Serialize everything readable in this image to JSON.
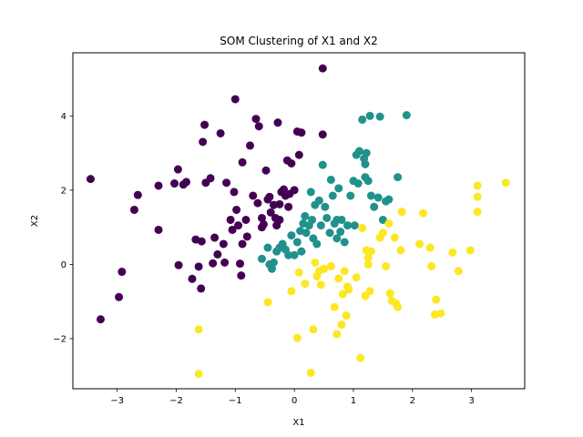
{
  "chart_data": {
    "type": "scatter",
    "title": "SOM Clustering of X1 and X2",
    "xlabel": "X1",
    "ylabel": "X2",
    "xlim": [
      -3.75,
      3.9
    ],
    "ylim": [
      -3.35,
      5.7
    ],
    "xticks": [
      -3,
      -2,
      -1,
      0,
      1,
      2,
      3
    ],
    "yticks": [
      -2,
      0,
      2,
      4
    ],
    "xtick_labels": [
      "−3",
      "−2",
      "−1",
      "0",
      "1",
      "2",
      "3"
    ],
    "ytick_labels": [
      "−2",
      "0",
      "2",
      "4"
    ],
    "grid": false,
    "legend": "none",
    "colors": {
      "cluster_0": "#440154",
      "cluster_1": "#21918c",
      "cluster_2": "#fde725"
    },
    "series": [
      {
        "color_key": "cluster_0",
        "points": [
          [
            -3.45,
            2.3
          ],
          [
            -3.28,
            -1.48
          ],
          [
            -2.97,
            -0.88
          ],
          [
            -2.92,
            -0.2
          ],
          [
            -2.71,
            1.47
          ],
          [
            -2.65,
            1.87
          ],
          [
            -2.3,
            2.12
          ],
          [
            -2.3,
            0.93
          ],
          [
            -2.03,
            2.18
          ],
          [
            -1.97,
            2.56
          ],
          [
            -1.96,
            -0.02
          ],
          [
            -1.88,
            2.15
          ],
          [
            -1.83,
            2.22
          ],
          [
            -1.73,
            -0.39
          ],
          [
            -1.67,
            0.67
          ],
          [
            -1.62,
            -0.06
          ],
          [
            -1.58,
            -0.65
          ],
          [
            -1.57,
            0.62
          ],
          [
            -1.55,
            3.3
          ],
          [
            -1.52,
            3.76
          ],
          [
            -1.5,
            2.2
          ],
          [
            -1.42,
            2.32
          ],
          [
            -1.38,
            0.03
          ],
          [
            -1.35,
            0.72
          ],
          [
            -1.3,
            0.27
          ],
          [
            -1.25,
            3.53
          ],
          [
            -1.2,
            0.55
          ],
          [
            -1.18,
            0.05
          ],
          [
            -1.08,
            1.2
          ],
          [
            -1.05,
            0.93
          ],
          [
            -1.02,
            1.95
          ],
          [
            -1.0,
            4.45
          ],
          [
            -0.98,
            1.47
          ],
          [
            -0.95,
            1.05
          ],
          [
            -0.92,
            0.02
          ],
          [
            -0.9,
            -0.3
          ],
          [
            -0.88,
            0.55
          ],
          [
            -0.88,
            2.75
          ],
          [
            -0.82,
            1.2
          ],
          [
            -0.75,
            3.2
          ],
          [
            -0.65,
            3.92
          ],
          [
            -0.62,
            1.65
          ],
          [
            -0.55,
            1.25
          ],
          [
            -0.52,
            1.08
          ],
          [
            -0.48,
            2.53
          ],
          [
            -0.45,
            1.75
          ],
          [
            -0.42,
            1.82
          ],
          [
            -0.4,
            1.4
          ],
          [
            -0.35,
            1.6
          ],
          [
            -0.32,
            1.25
          ],
          [
            -0.3,
            1.05
          ],
          [
            -0.28,
            3.82
          ],
          [
            -0.25,
            1.62
          ],
          [
            -0.22,
            1.95
          ],
          [
            -0.18,
            2.02
          ],
          [
            -0.15,
            1.85
          ],
          [
            -0.12,
            2.8
          ],
          [
            -0.1,
            1.55
          ],
          [
            -0.08,
            1.9
          ],
          [
            -0.05,
            2.72
          ],
          [
            0.0,
            2.0
          ],
          [
            0.05,
            3.58
          ],
          [
            0.08,
            2.95
          ],
          [
            0.12,
            3.55
          ],
          [
            0.48,
            3.5
          ],
          [
            0.48,
            5.28
          ],
          [
            -0.6,
            3.72
          ],
          [
            -1.15,
            2.2
          ],
          [
            -0.7,
            1.85
          ],
          [
            -0.55,
            1.0
          ],
          [
            -0.8,
            0.75
          ],
          [
            -0.25,
            1.2
          ]
        ]
      },
      {
        "color_key": "cluster_1",
        "points": [
          [
            -0.55,
            0.15
          ],
          [
            -0.45,
            0.45
          ],
          [
            -0.42,
            0.0
          ],
          [
            -0.38,
            -0.12
          ],
          [
            -0.35,
            0.05
          ],
          [
            -0.3,
            0.35
          ],
          [
            -0.25,
            0.45
          ],
          [
            -0.2,
            0.55
          ],
          [
            -0.15,
            0.4
          ],
          [
            -0.1,
            0.25
          ],
          [
            -0.05,
            0.78
          ],
          [
            0.0,
            0.25
          ],
          [
            0.05,
            0.6
          ],
          [
            0.1,
            0.9
          ],
          [
            0.12,
            0.35
          ],
          [
            0.15,
            1.1
          ],
          [
            0.18,
            1.3
          ],
          [
            0.2,
            0.85
          ],
          [
            0.25,
            1.05
          ],
          [
            0.28,
            1.95
          ],
          [
            0.3,
            1.2
          ],
          [
            0.32,
            0.7
          ],
          [
            0.35,
            1.6
          ],
          [
            0.38,
            0.55
          ],
          [
            0.42,
            1.72
          ],
          [
            0.45,
            1.05
          ],
          [
            0.48,
            2.68
          ],
          [
            0.52,
            1.55
          ],
          [
            0.55,
            1.25
          ],
          [
            0.6,
            0.85
          ],
          [
            0.62,
            2.28
          ],
          [
            0.65,
            1.85
          ],
          [
            0.68,
            1.1
          ],
          [
            0.72,
            0.7
          ],
          [
            0.75,
            2.05
          ],
          [
            0.78,
            0.88
          ],
          [
            0.8,
            1.2
          ],
          [
            0.85,
            0.6
          ],
          [
            0.9,
            1.05
          ],
          [
            0.95,
            1.85
          ],
          [
            1.0,
            2.25
          ],
          [
            1.02,
            1.05
          ],
          [
            1.05,
            2.95
          ],
          [
            1.08,
            2.18
          ],
          [
            1.1,
            3.05
          ],
          [
            1.15,
            3.9
          ],
          [
            1.18,
            2.85
          ],
          [
            1.2,
            2.7
          ],
          [
            1.22,
            3.0
          ],
          [
            1.25,
            2.25
          ],
          [
            1.28,
            4.0
          ],
          [
            1.3,
            1.85
          ],
          [
            1.35,
            1.55
          ],
          [
            1.42,
            1.8
          ],
          [
            1.45,
            3.98
          ],
          [
            1.5,
            1.2
          ],
          [
            1.55,
            1.7
          ],
          [
            1.6,
            1.75
          ],
          [
            1.75,
            2.35
          ],
          [
            1.9,
            4.02
          ],
          [
            1.2,
            2.35
          ],
          [
            0.72,
            1.2
          ]
        ]
      },
      {
        "color_key": "cluster_2",
        "points": [
          [
            -1.62,
            -1.75
          ],
          [
            -1.62,
            -2.95
          ],
          [
            -0.45,
            -1.02
          ],
          [
            -0.05,
            -0.72
          ],
          [
            0.05,
            -1.98
          ],
          [
            0.08,
            -0.22
          ],
          [
            0.18,
            -0.52
          ],
          [
            0.28,
            -2.92
          ],
          [
            0.32,
            -1.75
          ],
          [
            0.35,
            0.05
          ],
          [
            0.38,
            -0.32
          ],
          [
            0.42,
            -0.18
          ],
          [
            0.45,
            -0.55
          ],
          [
            0.5,
            -0.12
          ],
          [
            0.62,
            -0.05
          ],
          [
            0.68,
            -1.15
          ],
          [
            0.72,
            -1.88
          ],
          [
            0.75,
            -0.38
          ],
          [
            0.8,
            -1.62
          ],
          [
            0.82,
            -0.8
          ],
          [
            0.85,
            -0.18
          ],
          [
            0.88,
            -1.38
          ],
          [
            0.9,
            -0.6
          ],
          [
            0.92,
            -0.68
          ],
          [
            1.05,
            -0.35
          ],
          [
            1.12,
            -2.52
          ],
          [
            1.15,
            0.98
          ],
          [
            1.2,
            -0.85
          ],
          [
            1.22,
            0.38
          ],
          [
            1.25,
            0.18
          ],
          [
            1.28,
            -0.72
          ],
          [
            1.3,
            0.35
          ],
          [
            1.45,
            0.72
          ],
          [
            1.55,
            -0.05
          ],
          [
            1.6,
            1.1
          ],
          [
            1.62,
            -0.78
          ],
          [
            1.65,
            -0.98
          ],
          [
            1.7,
            0.72
          ],
          [
            1.72,
            -1.05
          ],
          [
            1.75,
            -1.15
          ],
          [
            1.8,
            0.38
          ],
          [
            1.82,
            1.42
          ],
          [
            2.12,
            0.55
          ],
          [
            2.18,
            1.38
          ],
          [
            2.3,
            0.45
          ],
          [
            2.32,
            -0.05
          ],
          [
            2.38,
            -1.35
          ],
          [
            2.4,
            -0.95
          ],
          [
            2.48,
            -1.32
          ],
          [
            2.68,
            0.32
          ],
          [
            2.78,
            -0.18
          ],
          [
            2.98,
            0.38
          ],
          [
            3.1,
            1.42
          ],
          [
            3.1,
            1.82
          ],
          [
            3.1,
            2.12
          ],
          [
            3.58,
            2.2
          ],
          [
            1.5,
            0.85
          ],
          [
            1.25,
            0.0
          ]
        ]
      }
    ]
  }
}
